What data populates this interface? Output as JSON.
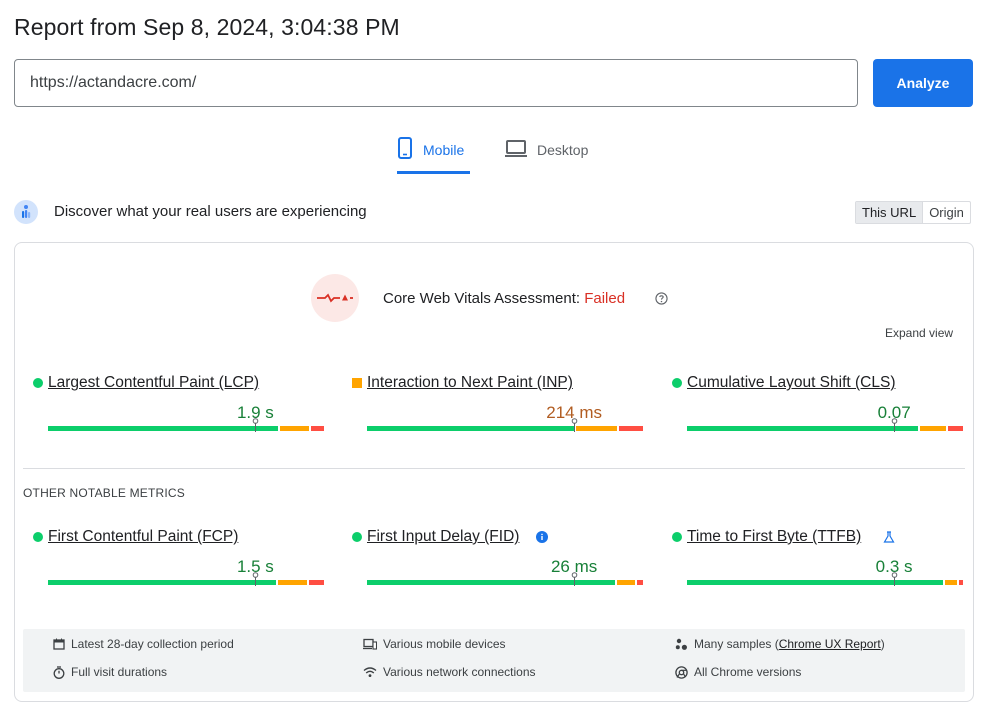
{
  "header": {
    "title": "Report from Sep 8, 2024, 3:04:38 PM"
  },
  "url_input": {
    "value": "https://actandacre.com/"
  },
  "analyze_button": {
    "label": "Analyze"
  },
  "tabs": [
    {
      "label": "Mobile",
      "active": true
    },
    {
      "label": "Desktop",
      "active": false
    }
  ],
  "discover": {
    "text": "Discover what your real users are experiencing",
    "toggle": {
      "this_url": "This URL",
      "origin": "Origin"
    }
  },
  "assessment": {
    "label": "Core Web Vitals Assessment:",
    "status": "Failed",
    "expand_view": "Expand view"
  },
  "colors": {
    "good": "#0cce6b",
    "needs": "#ffa400",
    "poor": "#ff4e42",
    "good_text": "#188038",
    "needs_text": "#b15c21",
    "accent": "#1a73e8"
  },
  "core_metrics": [
    {
      "name": "Largest Contentful Paint (LCP)",
      "value": "1.9 s",
      "rating": "good",
      "marker": 0.746,
      "dist": [
        0.75,
        0.1,
        0.05
      ]
    },
    {
      "name": "Interaction to Next Paint (INP)",
      "value": "214 ms",
      "rating": "needs",
      "marker": 0.745,
      "dist": [
        0.73,
        0.15,
        0.09
      ]
    },
    {
      "name": "Cumulative Layout Shift (CLS)",
      "value": "0.07",
      "rating": "good",
      "marker": 0.745,
      "dist": [
        0.82,
        0.1,
        0.06
      ]
    }
  ],
  "other_metrics_title": "OTHER NOTABLE METRICS",
  "other_metrics": [
    {
      "name": "First Contentful Paint (FCP)",
      "value": "1.5 s",
      "rating": "good",
      "marker": 0.746,
      "dist": [
        0.82,
        0.11,
        0.06
      ]
    },
    {
      "name": "First Input Delay (FID)",
      "value": "26 ms",
      "rating": "good",
      "marker": 0.745,
      "dist": [
        0.89,
        0.07,
        0.03
      ],
      "info_icon": true
    },
    {
      "name": "Time to First Byte (TTFB)",
      "value": "0.3 s",
      "rating": "good",
      "marker": 0.745,
      "dist": [
        0.92,
        0.05,
        0.02
      ],
      "lab_icon": true
    }
  ],
  "footer": {
    "collection": "Latest 28-day collection period",
    "devices": "Various mobile devices",
    "samples_prefix": "Many samples (",
    "samples_link": "Chrome UX Report",
    "samples_suffix": ")",
    "durations": "Full visit durations",
    "network": "Various network connections",
    "chrome": "All Chrome versions"
  }
}
